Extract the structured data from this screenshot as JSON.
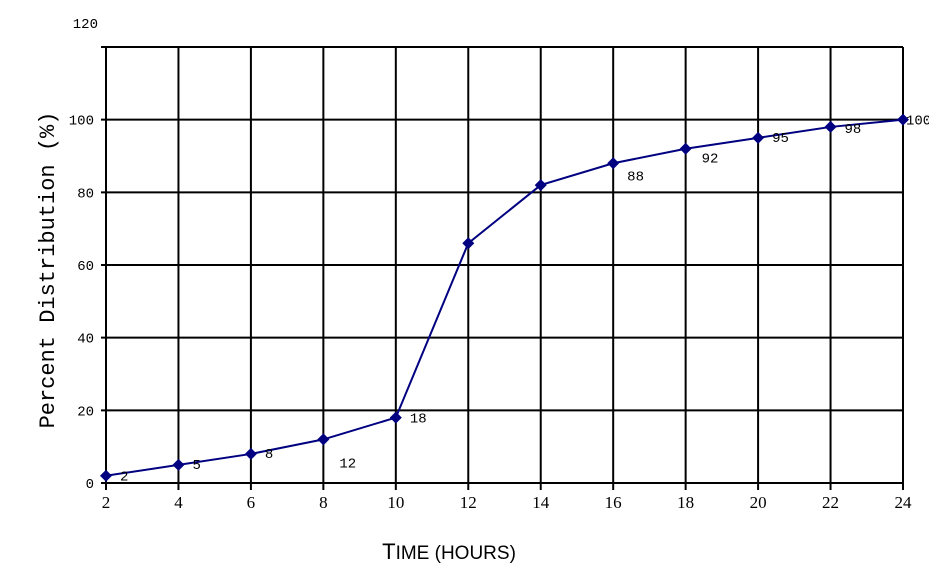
{
  "chart_data": {
    "type": "line",
    "title": "",
    "xlabel": "Time (hours)",
    "ylabel": "Percent Distribution (%)",
    "x": [
      2,
      4,
      6,
      8,
      10,
      12,
      14,
      16,
      18,
      20,
      22,
      24
    ],
    "series": [
      {
        "name": "Percent Distribution",
        "values": [
          2,
          5,
          8,
          12,
          18,
          66,
          82,
          88,
          92,
          95,
          98,
          100
        ],
        "color": "#000080",
        "marker": "diamond"
      }
    ],
    "data_labels": [
      "2",
      "5",
      "8",
      "12",
      "18",
      "",
      "",
      "88",
      "92",
      "95",
      "98",
      "100"
    ],
    "xlim": [
      2,
      24
    ],
    "ylim": [
      0,
      120
    ],
    "x_ticks": [
      "2",
      "4",
      "6",
      "8",
      "10",
      "12",
      "14",
      "16",
      "18",
      "20",
      "22",
      "24"
    ],
    "y_ticks": [
      "0",
      "20",
      "40",
      "60",
      "80",
      "100",
      "120"
    ],
    "grid": true,
    "legend": null
  },
  "axes": {
    "xlabel_main": "T",
    "xlabel_rest": "IME (HOURS)",
    "ylabel": "Percent Distribution (%)"
  },
  "colors": {
    "line": "#000080",
    "grid": "#000000",
    "background": "#ffffff"
  }
}
